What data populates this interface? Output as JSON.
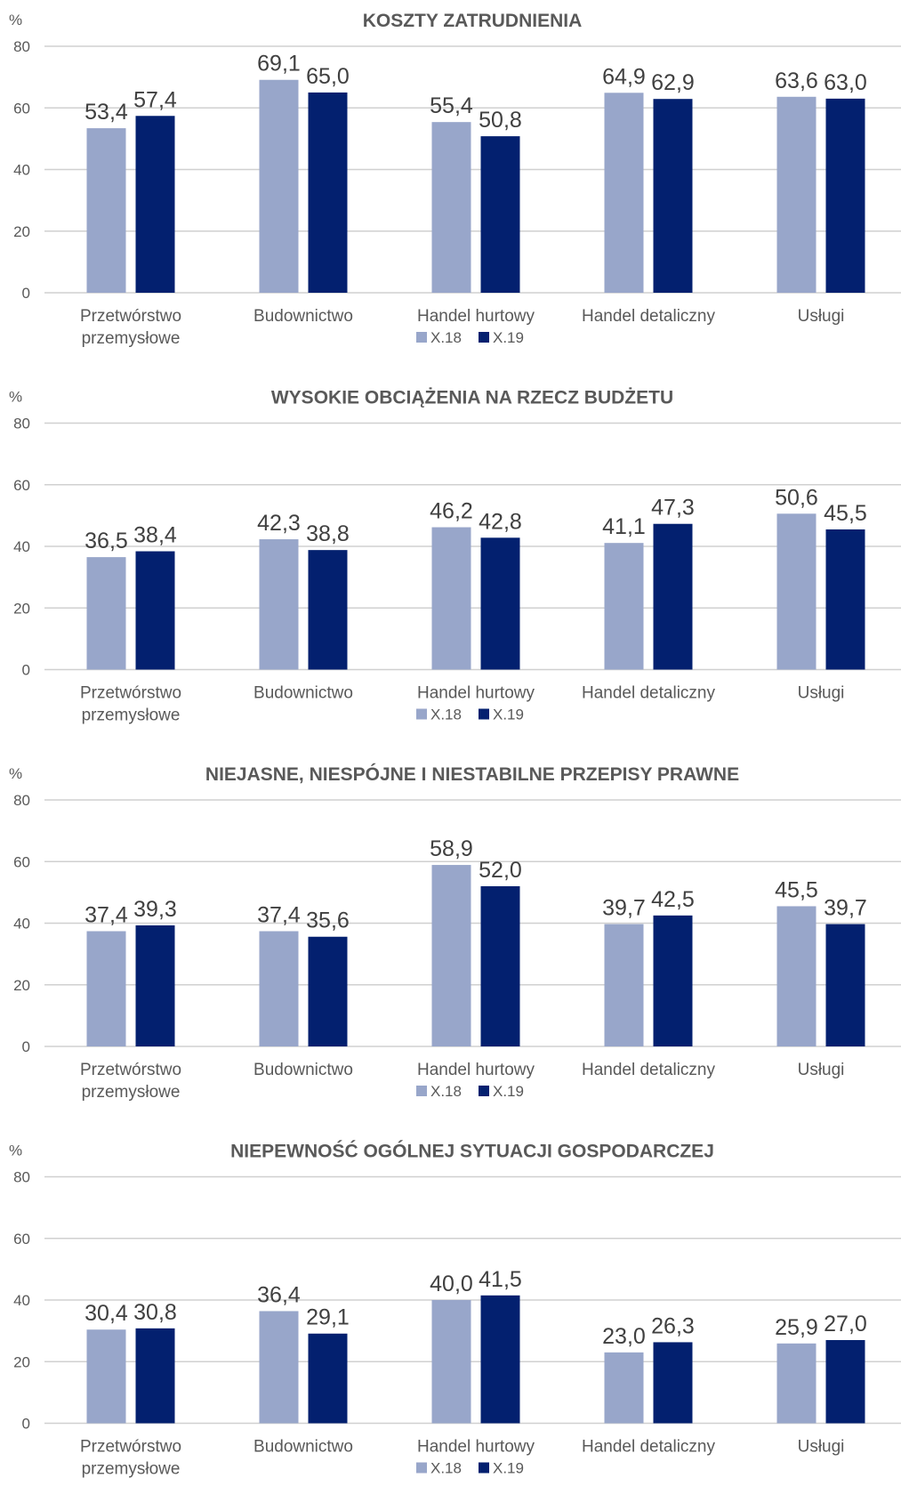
{
  "colors": {
    "x18": "#98a6ca",
    "x19": "#03206f",
    "grid": "#d0d0d0",
    "text": "#595959"
  },
  "chart_data": [
    {
      "type": "bar",
      "title": "KOSZTY ZATRUDNIENIA",
      "unit": "%",
      "ylim": [
        0,
        80
      ],
      "yticks": [
        "0",
        "20",
        "40",
        "60",
        "80"
      ],
      "categories": [
        [
          "Przetwórstwo",
          "przemysłowe"
        ],
        [
          "Budownictwo"
        ],
        [
          "Handel hurtowy"
        ],
        [
          "Handel detaliczny"
        ],
        [
          "Usługi"
        ]
      ],
      "series": [
        {
          "name": "X.18",
          "values": [
            53.4,
            69.1,
            55.4,
            64.9,
            63.6
          ],
          "labels": [
            "53,4",
            "69,1",
            "55,4",
            "64,9",
            "63,6"
          ]
        },
        {
          "name": "X.19",
          "values": [
            57.4,
            65.0,
            50.8,
            62.9,
            63.0
          ],
          "labels": [
            "57,4",
            "65,0",
            "50,8",
            "62,9",
            "63,0"
          ]
        }
      ],
      "legend": "bottom"
    },
    {
      "type": "bar",
      "title": "WYSOKIE OBCIĄŻENIA NA RZECZ BUDŻETU",
      "unit": "%",
      "ylim": [
        0,
        80
      ],
      "yticks": [
        "0",
        "20",
        "40",
        "60",
        "80"
      ],
      "categories": [
        [
          "Przetwórstwo",
          "przemysłowe"
        ],
        [
          "Budownictwo"
        ],
        [
          "Handel hurtowy"
        ],
        [
          "Handel detaliczny"
        ],
        [
          "Usługi"
        ]
      ],
      "series": [
        {
          "name": "X.18",
          "values": [
            36.5,
            42.3,
            46.2,
            41.1,
            50.6
          ],
          "labels": [
            "36,5",
            "42,3",
            "46,2",
            "41,1",
            "50,6"
          ]
        },
        {
          "name": "X.19",
          "values": [
            38.4,
            38.8,
            42.8,
            47.3,
            45.5
          ],
          "labels": [
            "38,4",
            "38,8",
            "42,8",
            "47,3",
            "45,5"
          ]
        }
      ],
      "legend": "bottom"
    },
    {
      "type": "bar",
      "title": "NIEJASNE, NIESPÓJNE I NIESTABILNE PRZEPISY PRAWNE",
      "unit": "%",
      "ylim": [
        0,
        80
      ],
      "yticks": [
        "0",
        "20",
        "40",
        "60",
        "80"
      ],
      "categories": [
        [
          "Przetwórstwo",
          "przemysłowe"
        ],
        [
          "Budownictwo"
        ],
        [
          "Handel hurtowy"
        ],
        [
          "Handel detaliczny"
        ],
        [
          "Usługi"
        ]
      ],
      "series": [
        {
          "name": "X.18",
          "values": [
            37.4,
            37.4,
            58.9,
            39.7,
            45.5
          ],
          "labels": [
            "37,4",
            "37,4",
            "58,9",
            "39,7",
            "45,5"
          ]
        },
        {
          "name": "X.19",
          "values": [
            39.3,
            35.6,
            52.0,
            42.5,
            39.7
          ],
          "labels": [
            "39,3",
            "35,6",
            "52,0",
            "42,5",
            "39,7"
          ]
        }
      ],
      "legend": "bottom"
    },
    {
      "type": "bar",
      "title": "NIEPEWNOŚĆ OGÓLNEJ SYTUACJI GOSPODARCZEJ",
      "unit": "%",
      "ylim": [
        0,
        80
      ],
      "yticks": [
        "0",
        "20",
        "40",
        "60",
        "80"
      ],
      "categories": [
        [
          "Przetwórstwo",
          "przemysłowe"
        ],
        [
          "Budownictwo"
        ],
        [
          "Handel hurtowy"
        ],
        [
          "Handel detaliczny"
        ],
        [
          "Usługi"
        ]
      ],
      "series": [
        {
          "name": "X.18",
          "values": [
            30.4,
            36.4,
            40.0,
            23.0,
            25.9
          ],
          "labels": [
            "30,4",
            "36,4",
            "40,0",
            "23,0",
            "25,9"
          ]
        },
        {
          "name": "X.19",
          "values": [
            30.8,
            29.1,
            41.5,
            26.3,
            27.0
          ],
          "labels": [
            "30,8",
            "29,1",
            "41,5",
            "26,3",
            "27,0"
          ]
        }
      ],
      "legend": "bottom"
    }
  ]
}
